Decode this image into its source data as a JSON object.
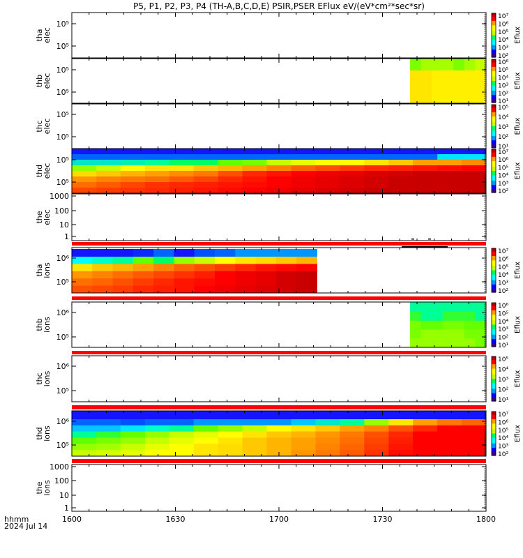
{
  "title": "P5, P1, P2, P3, P4 (TH-A,B,C,D,E) PSIR,PSER EFlux eV/(eV*cm²*sec*sr)",
  "time_axis": {
    "label_line1": "hhmm",
    "label_line2": "2024 Jul 14",
    "ticks": [
      "1600",
      "1630",
      "1700",
      "1730",
      "1800"
    ],
    "range_minutes": [
      0,
      120
    ]
  },
  "colorbar_label": "Eflux",
  "colors": {
    "band": "#ff0000",
    "frame": "#000000",
    "rainbow": [
      "#3c0080",
      "#0000ff",
      "#0096ff",
      "#00ffff",
      "#00ff64",
      "#c8ff00",
      "#ffff00",
      "#ffa000",
      "#ff0000",
      "#b40000"
    ]
  },
  "chart_data": [
    {
      "type": "heatmap",
      "panel": "tha-elec",
      "ylabel": [
        "tha",
        "elec"
      ],
      "ytick_labels": [
        "10⁵",
        "10⁵"
      ],
      "cbar_ticks": [
        "10⁷",
        "10⁶",
        "10⁵",
        "10⁴",
        "10³",
        "10²"
      ],
      "cbar_label": "Eflux",
      "cells": []
    },
    {
      "type": "heatmap",
      "panel": "thb-elec",
      "ylabel": [
        "thb",
        "elec"
      ],
      "ytick_labels": [
        "10⁵",
        "10⁵"
      ],
      "cbar_ticks": [
        "10⁶",
        "10⁵",
        "10⁴",
        "10³",
        "10²",
        "10¹"
      ],
      "cbar_label": "Eflux",
      "cells": [
        {
          "t": [
            98,
            120
          ],
          "rows": [
            [
              "#7cff00",
              "#a5ff00",
              "#a5ff00",
              "#a5ff00",
              "#7cff00",
              "#a5ff00",
              "#c8ff00"
            ],
            [
              "#ffe600",
              "#ffe600",
              "#fff000",
              "#fff000",
              "#fff000",
              "#fff000",
              "#fff000"
            ]
          ]
        }
      ]
    },
    {
      "type": "heatmap",
      "panel": "thc-elec",
      "ylabel": [
        "thc",
        "elec"
      ],
      "ytick_labels": [
        "10⁵",
        "10⁵"
      ],
      "cbar_ticks": [
        "10⁵",
        "10⁴",
        "10³",
        "10²",
        "10¹"
      ],
      "cbar_label": "Eflux",
      "cells": []
    },
    {
      "type": "heatmap",
      "panel": "thd-elec",
      "ylabel": [
        "thd",
        "elec"
      ],
      "ytick_labels": [
        "10⁵",
        "10⁵"
      ],
      "cbar_ticks": [
        "10⁷",
        "10⁶",
        "10⁵",
        "10⁴",
        "10³",
        "10²"
      ],
      "cbar_label": "Eflux",
      "cells": [
        {
          "t": [
            0,
            120
          ],
          "rows": [
            [
              "#1414ff",
              "#1414ff",
              "#1414ff",
              "#1414ff",
              "#1414ff",
              "#1414ff",
              "#1414ff",
              "#1414ff",
              "#1414ff",
              "#1414ff",
              "#1414ff",
              "#1414ff",
              "#1414ff",
              "#1414ff",
              "#1414ff",
              "#1414ff",
              "#1414ff"
            ],
            [
              "#0064ff",
              "#0064ff",
              "#0064ff",
              "#0064ff",
              "#0064ff",
              "#0064ff",
              "#0064ff",
              "#0064ff",
              "#0064ff",
              "#0064ff",
              "#0064ff",
              "#0064ff",
              "#0064ff",
              "#0064ff",
              "#0064ff",
              "#00e6ff",
              "#00e6ff"
            ],
            [
              "#00e6c8",
              "#00e6c8",
              "#00f0b4",
              "#00ff96",
              "#00ff64",
              "#00ff64",
              "#64ff00",
              "#78ff00",
              "#c8ff00",
              "#e6ff00",
              "#ffff00",
              "#ffff00",
              "#ffe600",
              "#ffc800",
              "#ffa000",
              "#ffa000",
              "#ff8c00"
            ],
            [
              "#96ff00",
              "#c8ff00",
              "#ffff00",
              "#ffe600",
              "#ffe600",
              "#ffc800",
              "#ffb400",
              "#ffa000",
              "#ff8200",
              "#ff6400",
              "#ff5000",
              "#ff3c00",
              "#ff2800",
              "#ff1e00",
              "#ff1400",
              "#ff0a00",
              "#ff0000"
            ],
            [
              "#ffdc00",
              "#ffc800",
              "#ffb400",
              "#ffa000",
              "#ff8c00",
              "#ff7800",
              "#ff5000",
              "#ff2800",
              "#ff1400",
              "#ff0000",
              "#f00000",
              "#e60000",
              "#dc0000",
              "#d20000",
              "#c80000",
              "#c80000",
              "#c80000"
            ],
            [
              "#ff9600",
              "#ff8200",
              "#ff7800",
              "#ff6e00",
              "#ff5a00",
              "#ff4600",
              "#ff2800",
              "#ff1400",
              "#ff0000",
              "#f00000",
              "#e60000",
              "#dc0000",
              "#d20000",
              "#c80000",
              "#c80000",
              "#c80000",
              "#c80000"
            ],
            [
              "#ff6e00",
              "#ff5a00",
              "#ff4600",
              "#ff3200",
              "#ff2800",
              "#ff1e00",
              "#ff1400",
              "#ff0a00",
              "#ff0000",
              "#f00000",
              "#e60000",
              "#dc0000",
              "#d20000",
              "#c80000",
              "#c80000",
              "#c80000",
              "#c80000"
            ],
            [
              "#ff4600",
              "#ff3c00",
              "#ff3200",
              "#ff2800",
              "#ff1e00",
              "#ff1400",
              "#ff0a00",
              "#ff0000",
              "#f00000",
              "#e60000",
              "#dc0000",
              "#d20000",
              "#c80000",
              "#c80000",
              "#c80000",
              "#c80000",
              "#c80000"
            ]
          ]
        }
      ]
    },
    {
      "type": "heatmap",
      "panel": "the-elec",
      "ylabel": [
        "the",
        "elec"
      ],
      "ytick_labels": [
        "1000",
        "100",
        "10",
        "1"
      ],
      "cells": []
    },
    {
      "type": "heatmap",
      "panel": "tha-ions",
      "ylabel": [
        "tha",
        "ions"
      ],
      "ytick_labels": [
        "10⁶",
        "10⁵"
      ],
      "cbar_ticks": [
        "10⁷",
        "10⁶",
        "10⁵",
        "10⁴",
        "10³",
        "10²"
      ],
      "cbar_label": "Eflux",
      "cells": [
        {
          "t": [
            0,
            71
          ],
          "rows": [
            [
              "#1414ff",
              "#1414ff",
              "#1414ff",
              "#0a28ff",
              "#0064ff",
              "#1414ff",
              "#0050ff",
              "#0064ff",
              "#0096ff",
              "#0096ff",
              "#0096ff",
              "#0096ff"
            ],
            [
              "#00ffff",
              "#00ffc8",
              "#00ff96",
              "#64ff00",
              "#00ff64",
              "#96ff00",
              "#c8ff00",
              "#ffff00",
              "#ffe600",
              "#ffdc00",
              "#ffc800",
              "#ffb400"
            ],
            [
              "#ffe600",
              "#ffc800",
              "#ffb400",
              "#ffa000",
              "#ff8200",
              "#ff6400",
              "#ff5000",
              "#ff3c00",
              "#ff2800",
              "#ff1400",
              "#ff0a00",
              "#ff0000"
            ],
            [
              "#ff9600",
              "#ff8200",
              "#ff6e00",
              "#ff5a00",
              "#ff4600",
              "#ff3200",
              "#ff1e00",
              "#ff0000",
              "#f00000",
              "#e60000",
              "#d20000",
              "#c80000"
            ],
            [
              "#ff6e00",
              "#ff6400",
              "#ff5000",
              "#ff3c00",
              "#ff2800",
              "#ff1400",
              "#ff0a00",
              "#ff0000",
              "#f00000",
              "#e60000",
              "#d20000",
              "#c80000"
            ],
            [
              "#ff5000",
              "#ff4600",
              "#ff3c00",
              "#ff2800",
              "#ff1e00",
              "#ff1400",
              "#ff0000",
              "#f00000",
              "#e60000",
              "#dc0000",
              "#d20000",
              "#c80000"
            ]
          ]
        }
      ]
    },
    {
      "type": "heatmap",
      "panel": "thb-ions",
      "ylabel": [
        "thb",
        "ions"
      ],
      "ytick_labels": [
        "10⁶",
        "10⁵"
      ],
      "cbar_ticks": [
        "10⁶",
        "10⁵",
        "10⁴",
        "10³",
        "10²",
        "10¹"
      ],
      "cbar_label": "Eflux",
      "cells": [
        {
          "t": [
            98,
            120
          ],
          "rows": [
            [
              "#00ff96",
              "#00ff96",
              "#00ff96",
              "#00ff96",
              "#00ff96",
              "#00ff96",
              "#00ff96"
            ],
            [
              "#32ff32",
              "#00ff96",
              "#00ff96",
              "#32ff32",
              "#32ff32",
              "#32ff32",
              "#00ff96"
            ],
            [
              "#78ff00",
              "#64ff00",
              "#64ff00",
              "#78ff00",
              "#78ff00",
              "#64ff00",
              "#64ff00"
            ],
            [
              "#78ff00",
              "#96ff00",
              "#96ff00",
              "#96ff00",
              "#96ff00",
              "#78ff00",
              "#78ff00"
            ],
            [
              "#96ff00",
              "#96ff00",
              "#96ff00",
              "#96ff00",
              "#96ff00",
              "#96ff00",
              "#78ff00"
            ]
          ]
        }
      ]
    },
    {
      "type": "heatmap",
      "panel": "thc-ions",
      "ylabel": [
        "thc",
        "ions"
      ],
      "ytick_labels": [
        "10⁶",
        "10⁵"
      ],
      "cbar_ticks": [
        "10⁵",
        "10⁴",
        "10³",
        "10²",
        "10¹"
      ],
      "cbar_label": "Eflux",
      "cells": []
    },
    {
      "type": "heatmap",
      "panel": "thd-ions",
      "ylabel": [
        "thd",
        "ions"
      ],
      "ytick_labels": [
        "10⁶",
        "10⁵"
      ],
      "cbar_ticks": [
        "10⁷",
        "10⁶",
        "10⁵",
        "10⁴",
        "10³",
        "10²"
      ],
      "cbar_label": "Eflux",
      "cells": [
        {
          "t": [
            0,
            120
          ],
          "rows": [
            [
              "#1414ff",
              "#1414ff",
              "#1414ff",
              "#1414ff",
              "#1414ff",
              "#1414ff",
              "#1414ff",
              "#1414ff",
              "#1414ff",
              "#1414ff",
              "#1414ff",
              "#1414ff",
              "#1414ff",
              "#1414ff",
              "#1414ff",
              "#1414ff",
              "#1414ff"
            ],
            [
              "#0064ff",
              "#0064ff",
              "#0050ff",
              "#0064ff",
              "#0064ff",
              "#0096ff",
              "#0096ff",
              "#0096ff",
              "#0096ff",
              "#00c8ff",
              "#00e6c8",
              "#00ff96",
              "#96ff00",
              "#ffe600",
              "#ffa000",
              "#ff7800",
              "#ff6400"
            ],
            [
              "#00c8ff",
              "#00c8ff",
              "#00e6ff",
              "#00ffc8",
              "#00ff96",
              "#64ff00",
              "#96ff00",
              "#c8ff00",
              "#ffff00",
              "#ffe600",
              "#ffc800",
              "#ffa000",
              "#ff8200",
              "#ff5000",
              "#ff2800",
              "#ff0000",
              "#ff0000"
            ],
            [
              "#00ff96",
              "#32ff32",
              "#64ff00",
              "#96ff00",
              "#c8ff00",
              "#e6ff00",
              "#ffff00",
              "#ffe600",
              "#ffc800",
              "#ffb400",
              "#ff9600",
              "#ff7800",
              "#ff5000",
              "#ff2800",
              "#ff0000",
              "#ff0000",
              "#ff0000"
            ],
            [
              "#64ff00",
              "#78ff00",
              "#96ff00",
              "#c8ff00",
              "#e6ff00",
              "#ffff00",
              "#ffe600",
              "#ffc800",
              "#ffb400",
              "#ffa000",
              "#ff8c00",
              "#ff6e00",
              "#ff4600",
              "#ff1e00",
              "#ff0000",
              "#ff0000",
              "#ff0000"
            ],
            [
              "#96ff00",
              "#a5ff00",
              "#c8ff00",
              "#e6ff00",
              "#ffff00",
              "#ffe600",
              "#ffdc00",
              "#ffc800",
              "#ffb400",
              "#ffa000",
              "#ff8200",
              "#ff6400",
              "#ff3c00",
              "#ff1400",
              "#ff0000",
              "#ff0000",
              "#ff0000"
            ],
            [
              "#c8ff00",
              "#d2ff00",
              "#e6ff00",
              "#ffff00",
              "#ffff00",
              "#ffe600",
              "#ffdc00",
              "#ffc800",
              "#ffb400",
              "#ff9600",
              "#ff7800",
              "#ff5a00",
              "#ff3200",
              "#ff0a00",
              "#ff0000",
              "#ff0000",
              "#ff0000"
            ]
          ]
        }
      ]
    },
    {
      "type": "heatmap",
      "panel": "the-ions",
      "ylabel": [
        "the",
        "ions"
      ],
      "ytick_labels": [
        "1000",
        "100",
        "10",
        "1"
      ],
      "cells": []
    }
  ]
}
